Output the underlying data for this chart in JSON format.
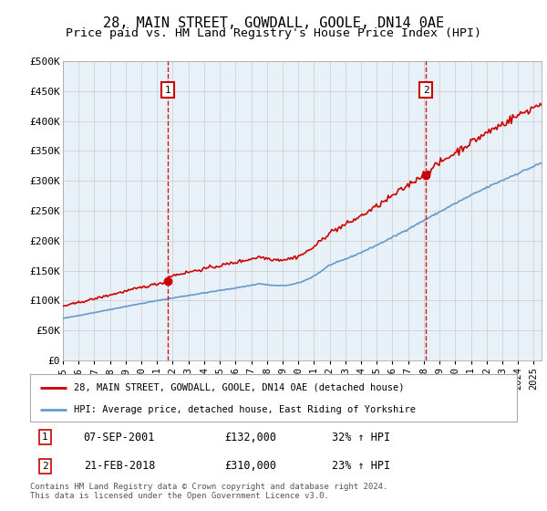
{
  "title": "28, MAIN STREET, GOWDALL, GOOLE, DN14 0AE",
  "subtitle": "Price paid vs. HM Land Registry's House Price Index (HPI)",
  "xlim": [
    1995.0,
    2025.5
  ],
  "ylim": [
    0,
    500000
  ],
  "yticks": [
    0,
    50000,
    100000,
    150000,
    200000,
    250000,
    300000,
    350000,
    400000,
    450000,
    500000
  ],
  "ytick_labels": [
    "£0",
    "£50K",
    "£100K",
    "£150K",
    "£200K",
    "£250K",
    "£300K",
    "£350K",
    "£400K",
    "£450K",
    "£500K"
  ],
  "xtick_labels": [
    "1995",
    "1996",
    "1997",
    "1998",
    "1999",
    "2000",
    "2001",
    "2002",
    "2003",
    "2004",
    "2005",
    "2006",
    "2007",
    "2008",
    "2009",
    "2010",
    "2011",
    "2012",
    "2013",
    "2014",
    "2015",
    "2016",
    "2017",
    "2018",
    "2019",
    "2020",
    "2021",
    "2022",
    "2023",
    "2024",
    "2025"
  ],
  "sale1_date": 2001.69,
  "sale1_price": 132000,
  "sale1_label": "07-SEP-2001",
  "sale1_amount": "£132,000",
  "sale1_hpi": "32% ↑ HPI",
  "sale2_date": 2018.13,
  "sale2_price": 310000,
  "sale2_label": "21-FEB-2018",
  "sale2_amount": "£310,000",
  "sale2_hpi": "23% ↑ HPI",
  "red_line_color": "#cc0000",
  "blue_line_color": "#6699cc",
  "marker_box_color": "#cc0000",
  "grid_color": "#cccccc",
  "background_color": "#e8f0f8",
  "legend_label_red": "28, MAIN STREET, GOWDALL, GOOLE, DN14 0AE (detached house)",
  "legend_label_blue": "HPI: Average price, detached house, East Riding of Yorkshire",
  "footer": "Contains HM Land Registry data © Crown copyright and database right 2024.\nThis data is licensed under the Open Government Licence v3.0.",
  "title_fontsize": 11,
  "subtitle_fontsize": 9.5
}
